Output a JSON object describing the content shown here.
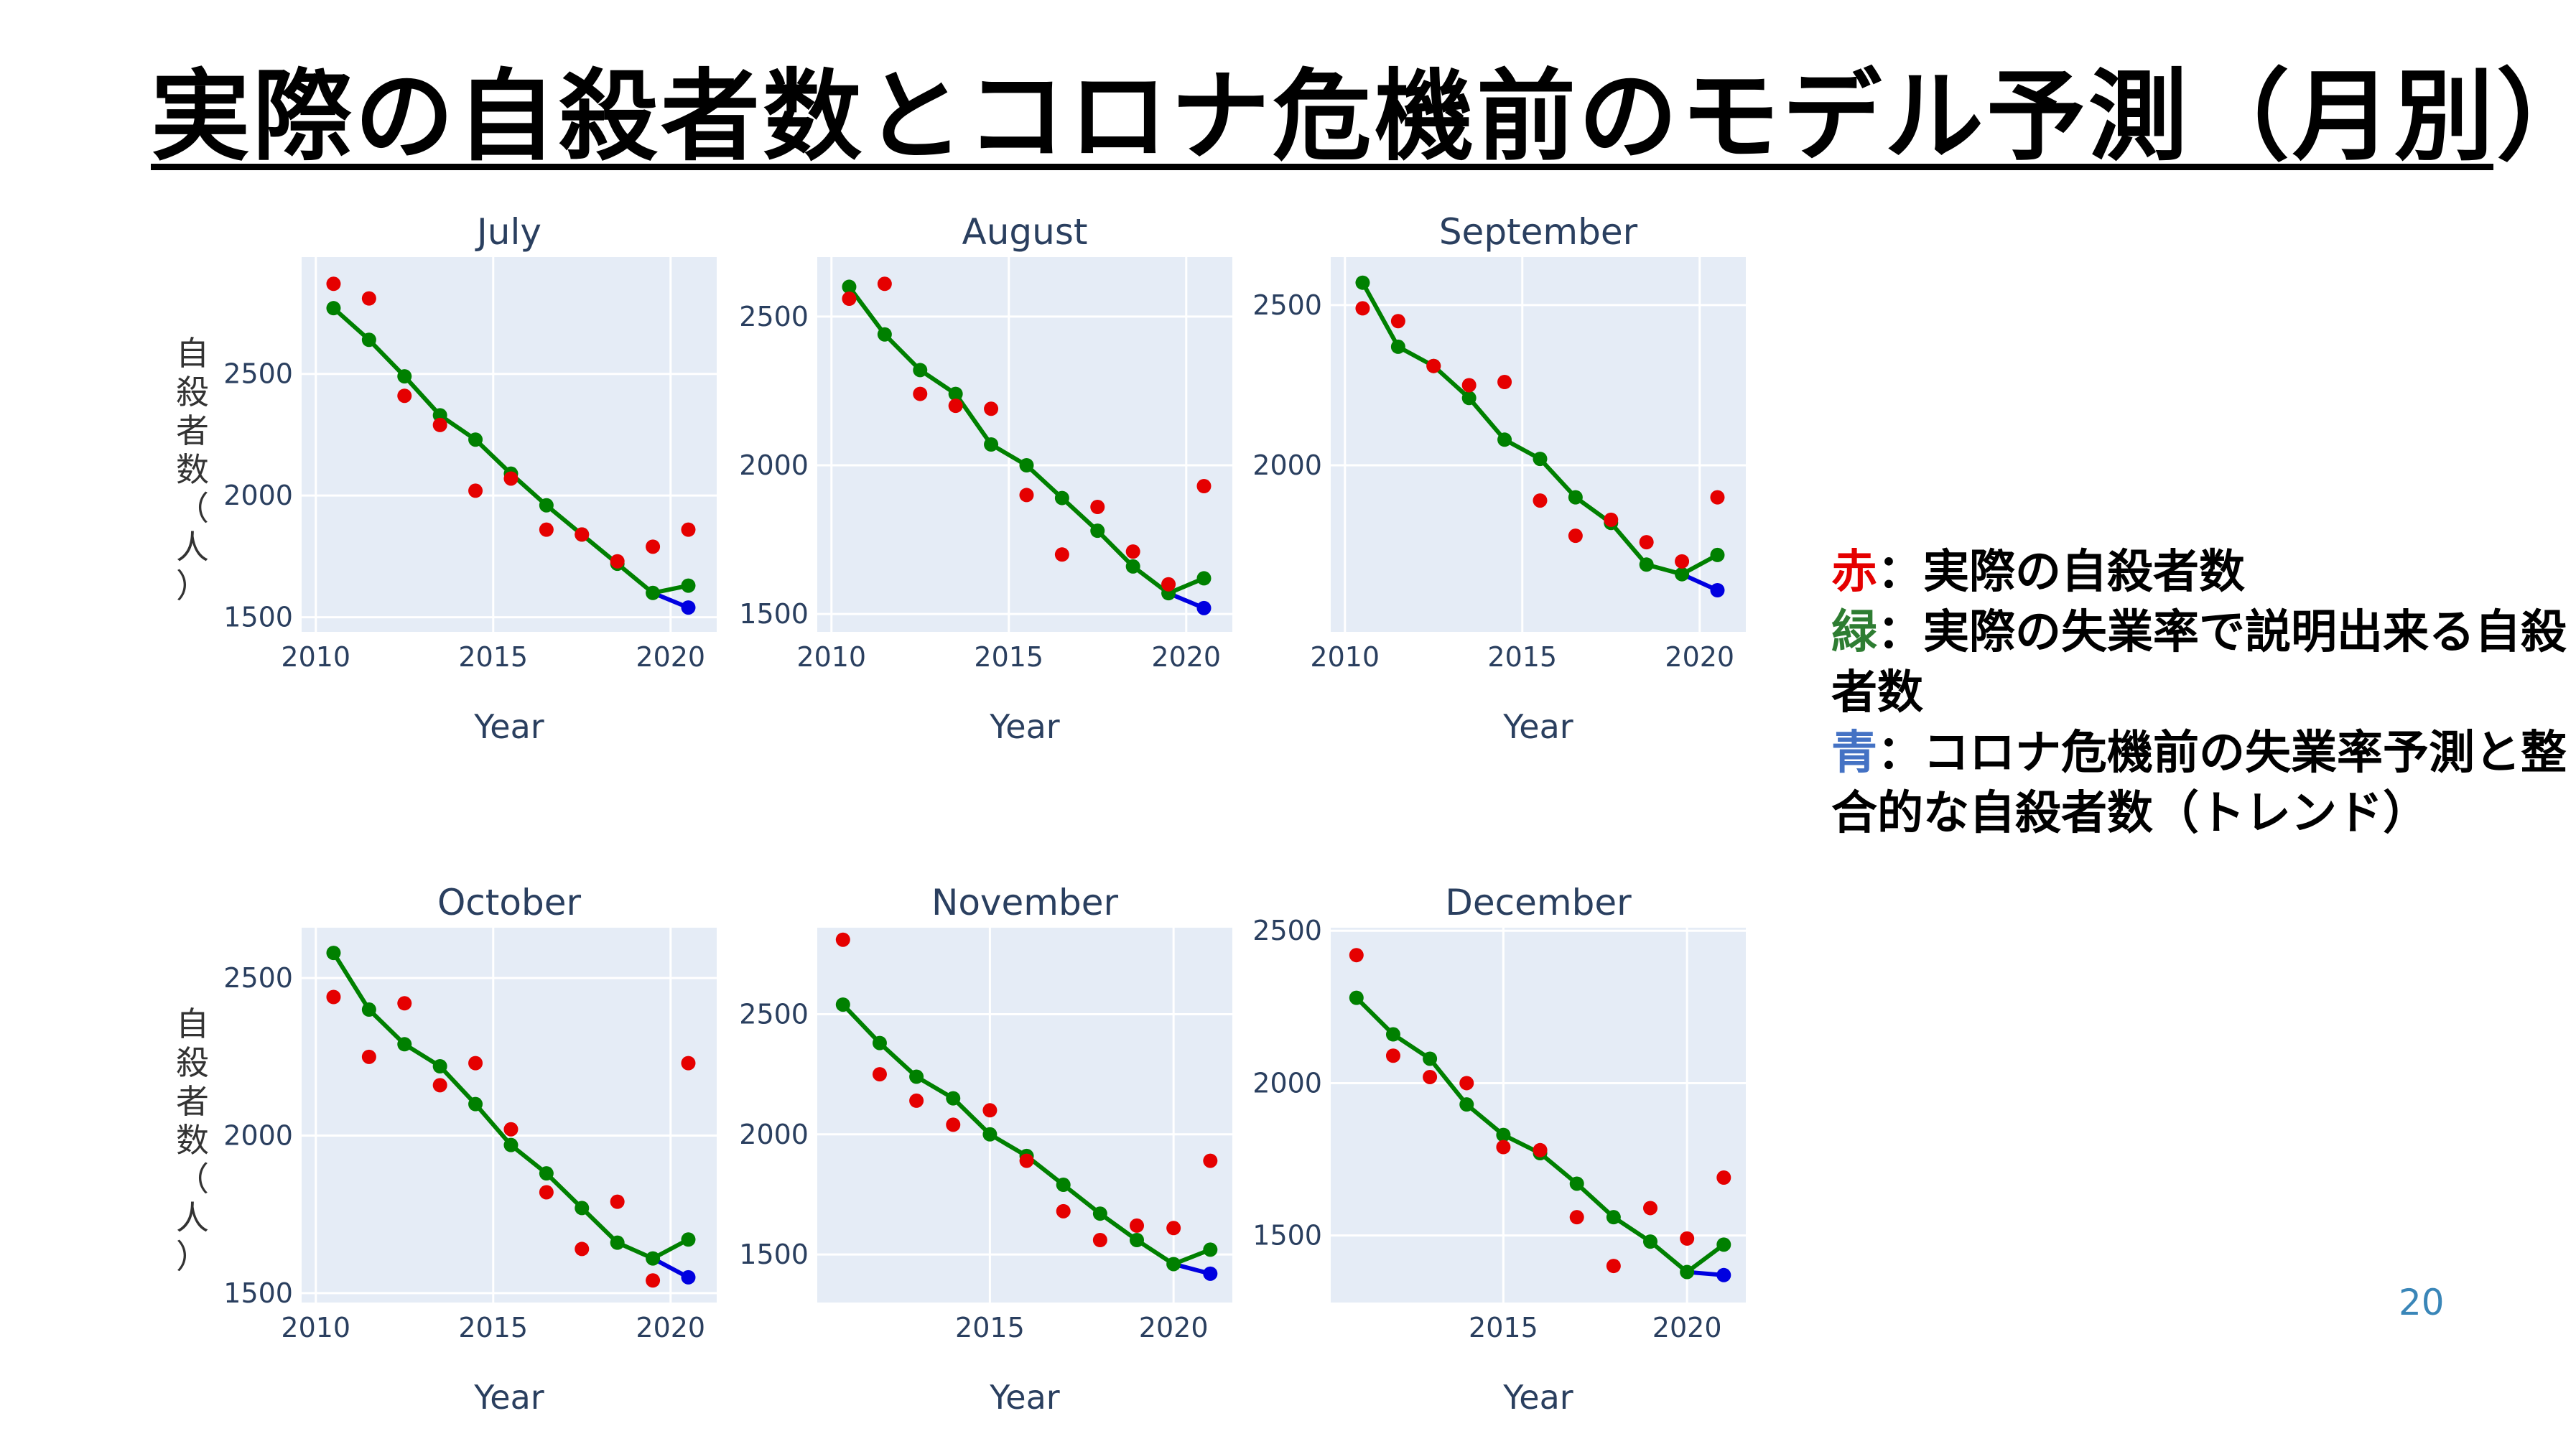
{
  "slide": {
    "title": "実際の自殺者数とコロナ危機前のモデル予測（月別）",
    "page_number": "20"
  },
  "legend": [
    {
      "key": "赤",
      "color": "#e50000",
      "text": "：実際の自殺者数"
    },
    {
      "key": "緑",
      "color": "#2e7d32",
      "text": "：実際の失業率で説明出来る自殺者数"
    },
    {
      "key": "青",
      "color": "#4472c4",
      "text": "：コロナ危機前の失業率予測と整合的な自殺者数（トレンド）"
    }
  ],
  "colors": {
    "plot_bg": "#e5ecf6",
    "grid": "#ffffff",
    "red": "#e50000",
    "green": "#008000",
    "blue": "#0000e0",
    "axis_text": "#2a3f5f"
  },
  "chart_data": [
    {
      "type": "scatter",
      "title": "July",
      "xlabel": "Year",
      "ylabel": "自殺者数（人）",
      "xlim": [
        2009.6,
        2021.3
      ],
      "ylim": [
        1440,
        2980
      ],
      "xticks": [
        2010,
        2015,
        2020
      ],
      "yticks": [
        1500,
        2000,
        2500
      ],
      "grid": true,
      "actual_x": [
        2010.5,
        2011.5,
        2012.5,
        2013.5,
        2014.5,
        2015.5,
        2016.5,
        2017.5,
        2018.5,
        2019.5,
        2020.5
      ],
      "actual_y": [
        2870,
        2810,
        2410,
        2290,
        2020,
        2070,
        1860,
        1840,
        1730,
        1790,
        1860
      ],
      "fitted_x": [
        2010.5,
        2011.5,
        2012.5,
        2013.5,
        2014.5,
        2015.5,
        2016.5,
        2017.5,
        2018.5,
        2019.5,
        2020.5
      ],
      "fitted_y": [
        2770,
        2640,
        2490,
        2330,
        2230,
        2090,
        1960,
        1840,
        1720,
        1600,
        1630
      ],
      "trend_x": [
        2019.5,
        2020.5
      ],
      "trend_y": [
        1600,
        1540
      ]
    },
    {
      "type": "scatter",
      "title": "August",
      "xlabel": "Year",
      "ylabel": "",
      "xlim": [
        2009.6,
        2021.3
      ],
      "ylim": [
        1440,
        2700
      ],
      "xticks": [
        2010,
        2015,
        2020
      ],
      "yticks": [
        1500,
        2000,
        2500
      ],
      "grid": true,
      "actual_x": [
        2010.5,
        2011.5,
        2012.5,
        2013.5,
        2014.5,
        2015.5,
        2016.5,
        2017.5,
        2018.5,
        2019.5,
        2020.5
      ],
      "actual_y": [
        2560,
        2610,
        2240,
        2200,
        2190,
        1900,
        1700,
        1860,
        1710,
        1600,
        1930
      ],
      "fitted_x": [
        2010.5,
        2011.5,
        2012.5,
        2013.5,
        2014.5,
        2015.5,
        2016.5,
        2017.5,
        2018.5,
        2019.5,
        2020.5
      ],
      "fitted_y": [
        2600,
        2440,
        2320,
        2240,
        2070,
        2000,
        1890,
        1780,
        1660,
        1570,
        1620
      ],
      "trend_x": [
        2019.5,
        2020.5
      ],
      "trend_y": [
        1570,
        1520
      ]
    },
    {
      "type": "scatter",
      "title": "September",
      "xlabel": "Year",
      "ylabel": "",
      "xlim": [
        2009.6,
        2021.3
      ],
      "ylim": [
        1480,
        2650
      ],
      "xticks": [
        2010,
        2015,
        2020
      ],
      "yticks": [
        2000,
        2500
      ],
      "grid": true,
      "actual_x": [
        2010.5,
        2011.5,
        2012.5,
        2013.5,
        2014.5,
        2015.5,
        2016.5,
        2017.5,
        2018.5,
        2019.5,
        2020.5
      ],
      "actual_y": [
        2490,
        2450,
        2310,
        2250,
        2260,
        1890,
        1780,
        1830,
        1760,
        1700,
        1900
      ],
      "fitted_x": [
        2010.5,
        2011.5,
        2012.5,
        2013.5,
        2014.5,
        2015.5,
        2016.5,
        2017.5,
        2018.5,
        2019.5,
        2020.5
      ],
      "fitted_y": [
        2570,
        2370,
        2310,
        2210,
        2080,
        2020,
        1900,
        1820,
        1690,
        1660,
        1720
      ],
      "trend_x": [
        2019.5,
        2020.5
      ],
      "trend_y": [
        1660,
        1610
      ]
    },
    {
      "type": "scatter",
      "title": "October",
      "xlabel": "Year",
      "ylabel": "自殺者数（人）",
      "xlim": [
        2009.6,
        2021.3
      ],
      "ylim": [
        1470,
        2660
      ],
      "xticks": [
        2010,
        2015,
        2020
      ],
      "yticks": [
        1500,
        2000,
        2500
      ],
      "grid": true,
      "actual_x": [
        2010.5,
        2011.5,
        2012.5,
        2013.5,
        2014.5,
        2015.5,
        2016.5,
        2017.5,
        2018.5,
        2019.5,
        2020.5
      ],
      "actual_y": [
        2440,
        2250,
        2420,
        2160,
        2230,
        2020,
        1820,
        1640,
        1790,
        1540,
        2230
      ],
      "fitted_x": [
        2010.5,
        2011.5,
        2012.5,
        2013.5,
        2014.5,
        2015.5,
        2016.5,
        2017.5,
        2018.5,
        2019.5,
        2020.5
      ],
      "fitted_y": [
        2580,
        2400,
        2290,
        2220,
        2100,
        1970,
        1880,
        1770,
        1660,
        1610,
        1670
      ],
      "trend_x": [
        2019.5,
        2020.5
      ],
      "trend_y": [
        1610,
        1550
      ]
    },
    {
      "type": "scatter",
      "title": "November",
      "xlabel": "Year",
      "ylabel": "",
      "xlim": [
        2010.3,
        2021.6
      ],
      "ylim": [
        1300,
        2860
      ],
      "xticks": [
        2015,
        2020
      ],
      "yticks": [
        1500,
        2000,
        2500
      ],
      "grid": true,
      "actual_x": [
        2011,
        2012,
        2013,
        2014,
        2015,
        2016,
        2017,
        2018,
        2019,
        2020,
        2021
      ],
      "actual_y": [
        2810,
        2250,
        2140,
        2040,
        2100,
        1890,
        1680,
        1560,
        1620,
        1610,
        1890
      ],
      "fitted_x": [
        2011,
        2012,
        2013,
        2014,
        2015,
        2016,
        2017,
        2018,
        2019,
        2020,
        2021
      ],
      "fitted_y": [
        2540,
        2380,
        2240,
        2150,
        2000,
        1910,
        1790,
        1670,
        1560,
        1460,
        1520
      ],
      "trend_x": [
        2020,
        2021
      ],
      "trend_y": [
        1460,
        1420
      ]
    },
    {
      "type": "scatter",
      "title": "December",
      "xlabel": "Year",
      "ylabel": "",
      "xlim": [
        2010.3,
        2021.6
      ],
      "ylim": [
        1280,
        2510
      ],
      "xticks": [
        2015,
        2020
      ],
      "yticks": [
        1500,
        2000,
        2500
      ],
      "grid": true,
      "actual_x": [
        2011,
        2012,
        2013,
        2014,
        2015,
        2016,
        2017,
        2018,
        2019,
        2020,
        2021
      ],
      "actual_y": [
        2420,
        2090,
        2020,
        2000,
        1790,
        1780,
        1560,
        1400,
        1590,
        1490,
        1690
      ],
      "fitted_x": [
        2011,
        2012,
        2013,
        2014,
        2015,
        2016,
        2017,
        2018,
        2019,
        2020,
        2021
      ],
      "fitted_y": [
        2280,
        2160,
        2080,
        1930,
        1830,
        1770,
        1670,
        1560,
        1480,
        1380,
        1470
      ],
      "trend_x": [
        2020,
        2021
      ],
      "trend_y": [
        1380,
        1370
      ]
    }
  ]
}
